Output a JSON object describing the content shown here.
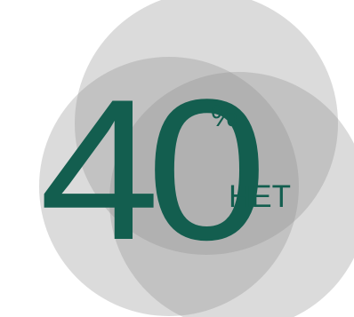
{
  "stat": {
    "number": "40",
    "percent_sign": "%",
    "word": "НЕТ"
  },
  "colors": {
    "text": "#135e4f",
    "circle": "#8f8f8f"
  }
}
